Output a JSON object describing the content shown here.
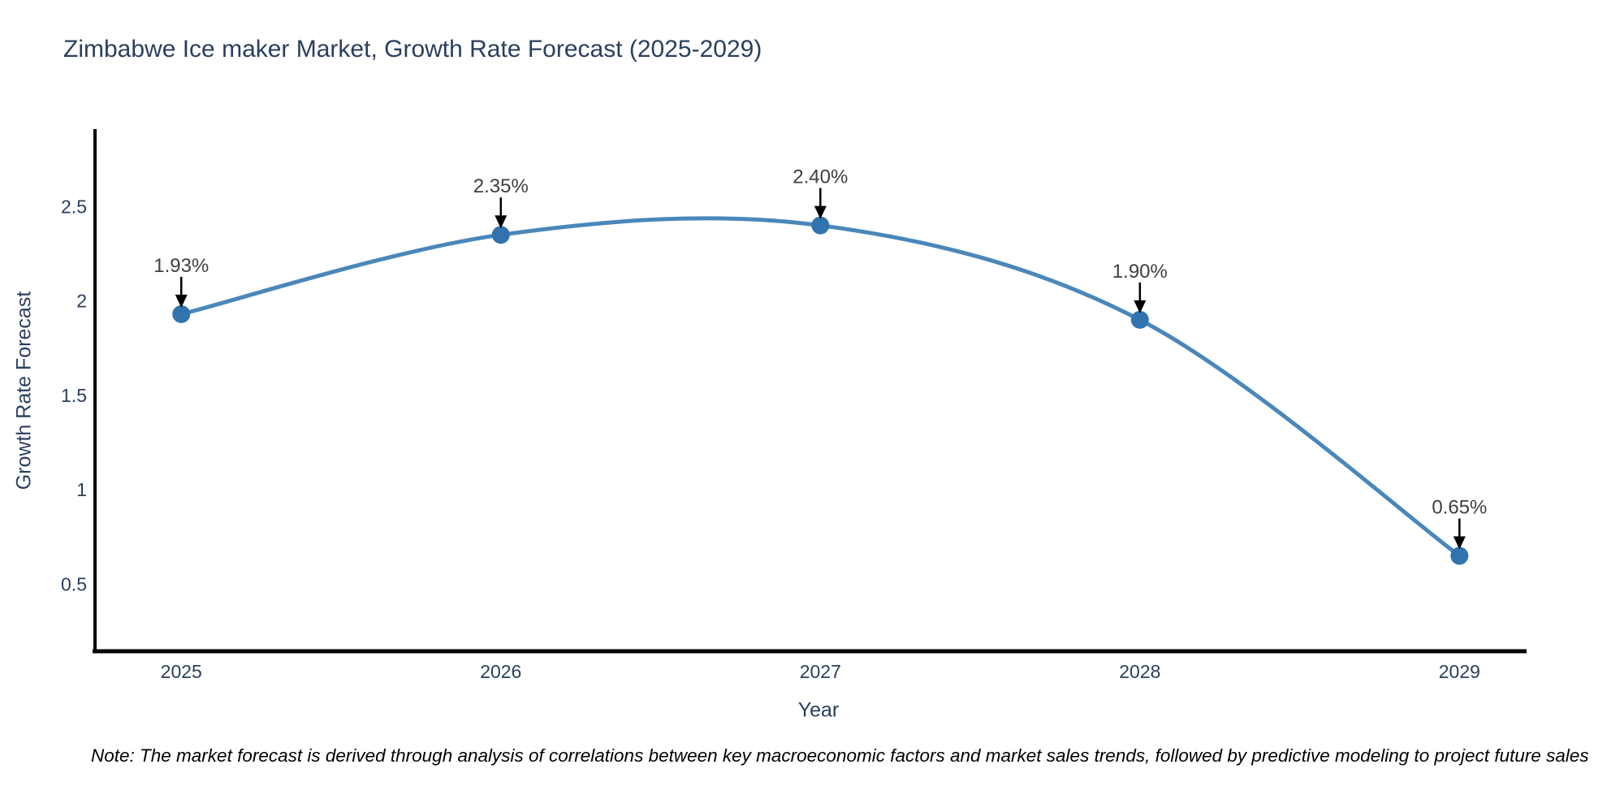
{
  "page": {
    "note": "Note: The market forecast is derived through analysis of correlations between key macroeconomic factors and market sales trends, followed by predictive modeling to project future sales"
  },
  "chart_data": {
    "type": "line",
    "title": "Zimbabwe Ice maker Market, Growth Rate Forecast (2025-2029)",
    "xlabel": "Year",
    "ylabel": "Growth Rate Forecast",
    "x": [
      2025,
      2026,
      2027,
      2028,
      2029
    ],
    "y": [
      1.93,
      2.35,
      2.4,
      1.9,
      0.65
    ],
    "point_labels": [
      "1.93%",
      "2.35%",
      "2.40%",
      "1.90%",
      "0.65%"
    ],
    "line_shape": "spline",
    "marker": "circle",
    "grid": false,
    "legend": "none",
    "xtick_labels": [
      "2025",
      "2026",
      "2027",
      "2028",
      "2029"
    ],
    "ytick_values": [
      0.5,
      1,
      1.5,
      2,
      2.5
    ],
    "ytick_labels": [
      "0.5",
      "1",
      "1.5",
      "2",
      "2.5"
    ],
    "xlim": [
      2024.73,
      2029.21
    ],
    "ylim": [
      0.145,
      2.91
    ],
    "colors": {
      "line": "#4a87ba",
      "marker": "#3173ae",
      "axis": "#000000",
      "tick_text": "#2a3f5f",
      "annotation_text": "#3f3f3f",
      "annotation_arrow": "#000000",
      "background": "#ffffff"
    }
  }
}
